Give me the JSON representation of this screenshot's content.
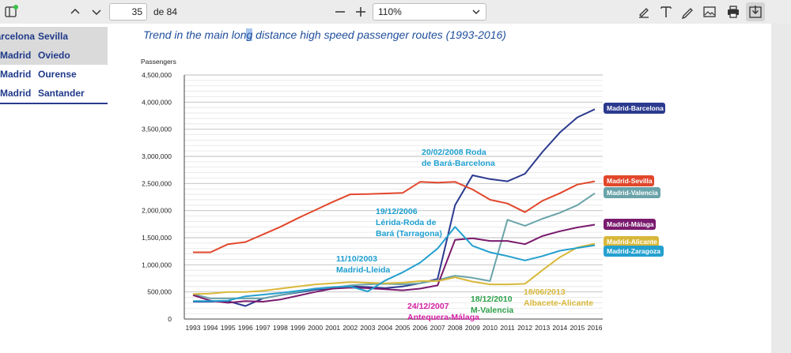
{
  "toolbar": {
    "page_current": "35",
    "page_total": "de 84",
    "zoom": "110%"
  },
  "table": {
    "rows": [
      {
        "col1": "Barcelona",
        "col2": "Sevilla"
      },
      {
        "col1": "Madrid",
        "col2": "Oviedo"
      },
      {
        "col1": "Madrid",
        "col2": "Ourense"
      },
      {
        "col1": "Madrid",
        "col2": "Santander"
      }
    ]
  },
  "title": {
    "before": "Trend in the main lon",
    "highlight": "g",
    "after": " distance high speed passenger routes (1993-2016)"
  },
  "colors": {
    "barcelona": "#2b3a8f",
    "sevilla": "#e2472b",
    "valencia": "#6aa3a9",
    "malaga": "#7a1a6e",
    "alicante": "#d8b83a",
    "zaragoza": "#24a0cf"
  },
  "chart_data": {
    "type": "line",
    "title": "Trend in the main long distance high speed passenger routes (1993-2016)",
    "ylabel": "Passengers",
    "xlabel": "",
    "ylim": [
      0,
      4500000
    ],
    "yticks": [
      "0",
      "500,000",
      "1,000,000",
      "1,500,000",
      "2,000,000",
      "2,500,000",
      "3,000,000",
      "3,500,000",
      "4,000,000",
      "4,500,000"
    ],
    "x": [
      "1993",
      "1994",
      "1995",
      "1996",
      "1997",
      "1998",
      "1999",
      "2000",
      "2001",
      "2002",
      "2003",
      "2004",
      "2005",
      "2006",
      "2007",
      "2008",
      "2009",
      "2010",
      "2011",
      "2012",
      "2013",
      "2014",
      "2015",
      "2016"
    ],
    "series": [
      {
        "name": "Madrid-Barcelona",
        "color": "#2b3a8f",
        "values": [
          320000,
          320000,
          330000,
          240000,
          380000,
          440000,
          490000,
          540000,
          570000,
          600000,
          590000,
          570000,
          600000,
          660000,
          740000,
          2100000,
          2650000,
          2580000,
          2540000,
          2680000,
          3080000,
          3440000,
          3720000,
          3870000
        ]
      },
      {
        "name": "Madrid-Sevilla",
        "color": "#e2472b",
        "values": [
          1230000,
          1230000,
          1380000,
          1420000,
          1560000,
          1700000,
          1860000,
          2010000,
          2160000,
          2300000,
          2305000,
          2315000,
          2325000,
          2530000,
          2515000,
          2530000,
          2390000,
          2200000,
          2130000,
          1970000,
          2180000,
          2320000,
          2480000,
          2540000
        ]
      },
      {
        "name": "Madrid-Valencia",
        "color": "#6aa3a9",
        "values": [
          460000,
          380000,
          380000,
          380000,
          380000,
          440000,
          500000,
          560000,
          580000,
          620000,
          640000,
          650000,
          640000,
          660000,
          720000,
          800000,
          760000,
          700000,
          1830000,
          1720000,
          1850000,
          1960000,
          2100000,
          2320000
        ]
      },
      {
        "name": "Madrid-Málaga",
        "color": "#7a1a6e",
        "values": [
          440000,
          340000,
          300000,
          330000,
          320000,
          360000,
          430000,
          500000,
          560000,
          580000,
          570000,
          550000,
          530000,
          560000,
          620000,
          1460000,
          1490000,
          1440000,
          1440000,
          1380000,
          1530000,
          1620000,
          1690000,
          1740000
        ]
      },
      {
        "name": "Madrid-Alicante",
        "color": "#d8b83a",
        "values": [
          460000,
          470000,
          500000,
          500000,
          520000,
          560000,
          600000,
          640000,
          660000,
          680000,
          670000,
          660000,
          670000,
          700000,
          700000,
          770000,
          690000,
          640000,
          640000,
          650000,
          900000,
          1140000,
          1320000,
          1390000
        ]
      },
      {
        "name": "Madrid-Zaragoza",
        "color": "#24a0cf",
        "values": [
          330000,
          330000,
          340000,
          420000,
          450000,
          480000,
          520000,
          560000,
          590000,
          600000,
          510000,
          710000,
          860000,
          1040000,
          1300000,
          1700000,
          1350000,
          1230000,
          1160000,
          1080000,
          1160000,
          1260000,
          1310000,
          1360000
        ]
      }
    ],
    "annotations": [
      {
        "text": "20/02/2008 Roda de Bará-Barcelona",
        "lines": [
          "20/02/2008 Roda",
          "de Bará-Barcelona"
        ],
        "color": "#1fa0d0"
      },
      {
        "text": "19/12/2006 Lérida-Roda de Bará (Tarragona)",
        "lines": [
          "19/12/2006",
          "Lérida-Roda de",
          "Bará (Tarragona)"
        ],
        "color": "#1fa0d0"
      },
      {
        "text": "11/10/2003 Madrid-Lleida",
        "lines": [
          "11/10/2003",
          "Madrid-Lleida"
        ],
        "color": "#1fa0d0"
      },
      {
        "text": "24/12/2007 Antequera-Málaga",
        "lines": [
          "24/12/2007",
          "Antequera-Málaga"
        ],
        "color": "#d41fa3"
      },
      {
        "text": "18/12/2010 M-Valencia",
        "lines": [
          "18/12/2010",
          "M-Valencia"
        ],
        "color": "#2ea04a"
      },
      {
        "text": "18/06/2013 Albacete-Alicante",
        "lines": [
          "18/06/2013",
          "Albacete-Alicante"
        ],
        "color": "#d8b83a"
      }
    ],
    "legend_placement": "right, end of lines",
    "grid": true
  }
}
